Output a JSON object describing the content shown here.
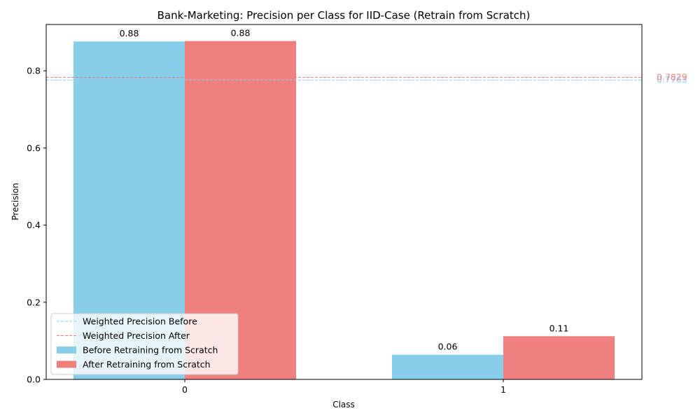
{
  "chart_data": {
    "type": "bar",
    "title": "Bank-Marketing: Precision per Class for IID-Case (Retrain from Scratch)",
    "xlabel": "Class",
    "ylabel": "Precision",
    "categories": [
      "0",
      "1"
    ],
    "ylim": [
      0,
      0.92
    ],
    "yticks": [
      "0.0",
      "0.2",
      "0.4",
      "0.6",
      "0.8"
    ],
    "grid": false,
    "legend_position": "lower-left",
    "series": [
      {
        "name": "Before Retraining from Scratch",
        "color": "#87ceeb",
        "values": [
          0.876,
          0.064
        ],
        "labels": [
          "0.88",
          "0.06"
        ]
      },
      {
        "name": "After Retraining from Scratch",
        "color": "#f08080",
        "values": [
          0.877,
          0.112
        ],
        "labels": [
          "0.88",
          "0.11"
        ]
      }
    ],
    "reference_lines": [
      {
        "name": "Weighted Precision Before",
        "value": 0.7763,
        "label": "0.7763",
        "color": "#87ceeb",
        "style": "dashed"
      },
      {
        "name": "Weighted Precision After",
        "value": 0.7829,
        "label": "0.7829",
        "color": "#f08080",
        "style": "dashed"
      }
    ]
  }
}
